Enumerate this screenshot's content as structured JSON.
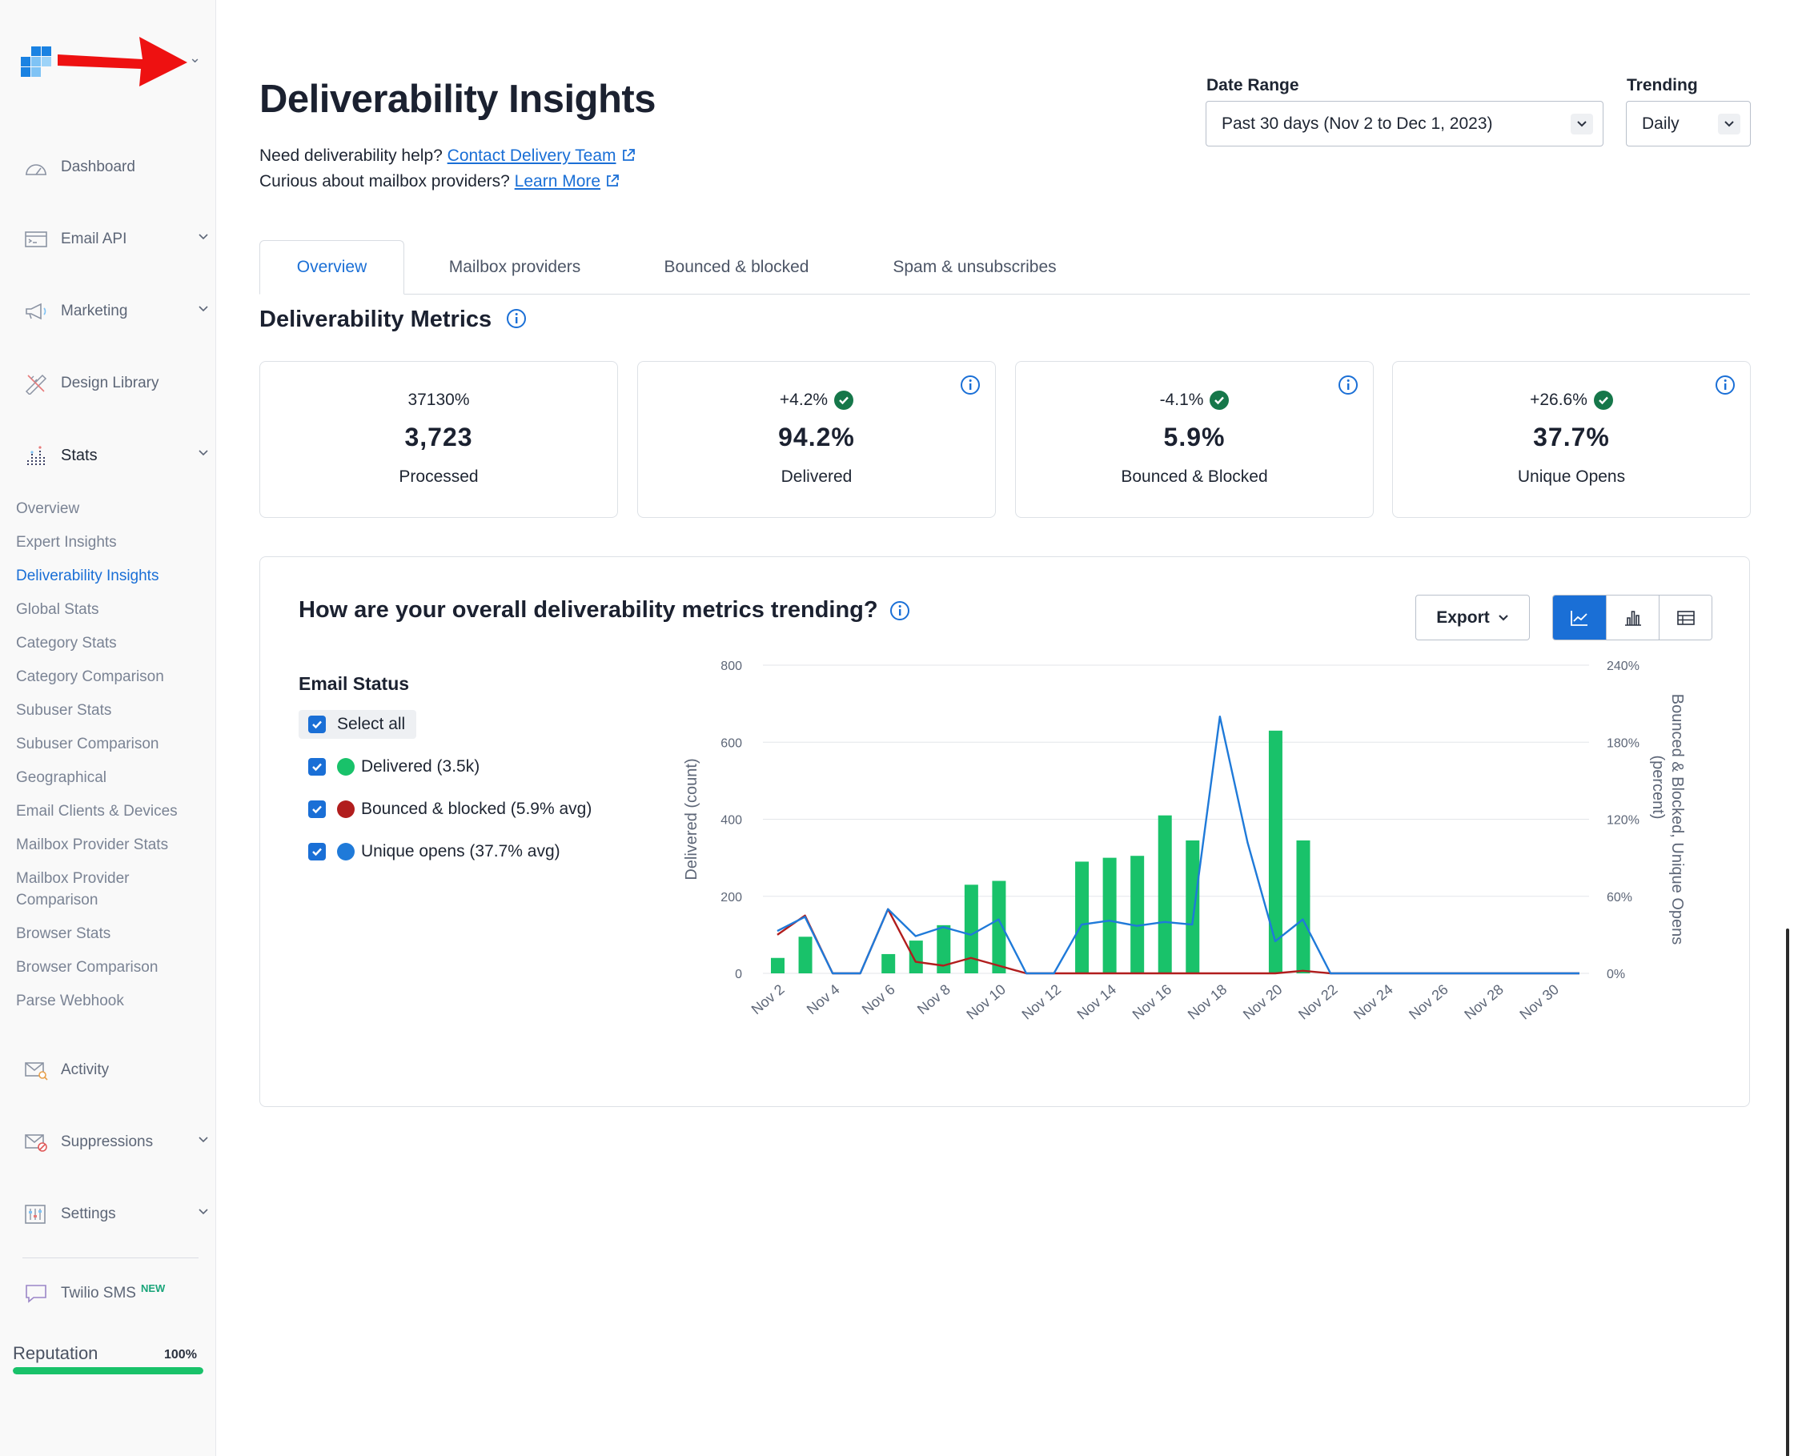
{
  "sidebar": {
    "nav_top": [
      {
        "label": "Dashboard",
        "icon": "gauge-icon"
      },
      {
        "label": "Email API",
        "icon": "terminal-window-icon",
        "expandable": true
      },
      {
        "label": "Marketing",
        "icon": "megaphone-icon",
        "expandable": true
      },
      {
        "label": "Design Library",
        "icon": "pencil-ruler-icon"
      },
      {
        "label": "Stats",
        "icon": "bar-chart-icon",
        "expandable": true
      }
    ],
    "stats_subitems": [
      "Overview",
      "Expert Insights",
      "Deliverability Insights",
      "Global Stats",
      "Category Stats",
      "Category Comparison",
      "Subuser Stats",
      "Subuser Comparison",
      "Geographical",
      "Email Clients & Devices",
      "Mailbox Provider Stats",
      "Mailbox Provider Comparison",
      "Browser Stats",
      "Browser Comparison",
      "Parse Webhook"
    ],
    "current_subitem": "Deliverability Insights",
    "nav_bottom": [
      {
        "label": "Activity",
        "icon": "envelope-search-icon"
      },
      {
        "label": "Suppressions",
        "icon": "envelope-block-icon",
        "expandable": true
      },
      {
        "label": "Settings",
        "icon": "sliders-icon",
        "expandable": true
      }
    ],
    "twilio": {
      "label": "Twilio SMS",
      "badge": "NEW"
    },
    "reputation": {
      "label": "Reputation",
      "value": "100%",
      "percent": 100
    }
  },
  "header": {
    "title": "Deliverability Insights",
    "help1_text": "Need deliverability help?",
    "help1_link": "Contact Delivery Team",
    "help2_text": "Curious about mailbox providers?",
    "help2_link": "Learn More",
    "date_range_label": "Date Range",
    "date_range_value": "Past 30 days (Nov 2 to Dec 1, 2023)",
    "trending_label": "Trending",
    "trending_value": "Daily"
  },
  "tabs": [
    "Overview",
    "Mailbox providers",
    "Bounced & blocked",
    "Spam & unsubscribes"
  ],
  "active_tab": "Overview",
  "metrics_title": "Deliverability Metrics",
  "metrics": [
    {
      "change": "37130%",
      "value": "3,723",
      "label": "Processed",
      "check": false,
      "info": false
    },
    {
      "change": "+4.2%",
      "value": "94.2%",
      "label": "Delivered",
      "check": true,
      "info": true
    },
    {
      "change": "-4.1%",
      "value": "5.9%",
      "label": "Bounced & Blocked",
      "check": true,
      "info": true
    },
    {
      "change": "+26.6%",
      "value": "37.7%",
      "label": "Unique Opens",
      "check": true,
      "info": true
    }
  ],
  "trend": {
    "title": "How are your overall deliverability metrics trending?",
    "export_label": "Export",
    "legend_title": "Email Status",
    "select_all": "Select all",
    "series_labels": [
      "Delivered (3.5k)",
      "Bounced & blocked (5.9% avg)",
      "Unique opens (37.7% avg)"
    ]
  },
  "colors": {
    "delivered": "#19c26a",
    "bounced": "#b11d1d",
    "opens": "#1f7ad9",
    "accent": "#1a6fd6"
  },
  "chart_data": {
    "type": "bar",
    "x": [
      "Nov 2",
      "Nov 3",
      "Nov 4",
      "Nov 5",
      "Nov 6",
      "Nov 7",
      "Nov 8",
      "Nov 9",
      "Nov 10",
      "Nov 11",
      "Nov 12",
      "Nov 13",
      "Nov 14",
      "Nov 15",
      "Nov 16",
      "Nov 17",
      "Nov 18",
      "Nov 19",
      "Nov 20",
      "Nov 21",
      "Nov 22",
      "Nov 23",
      "Nov 24",
      "Nov 25",
      "Nov 26",
      "Nov 27",
      "Nov 28",
      "Nov 29",
      "Nov 30",
      "Dec 1"
    ],
    "x_tick_labels": [
      "Nov 2",
      "Nov 4",
      "Nov 6",
      "Nov 8",
      "Nov 10",
      "Nov 12",
      "Nov 14",
      "Nov 16",
      "Nov 18",
      "Nov 20",
      "Nov 22",
      "Nov 24",
      "Nov 26",
      "Nov 28",
      "Nov 30"
    ],
    "ylabel": "Delivered (count)",
    "y2label": "Bounced & Blocked, Unique Opens (percent)",
    "ylim": [
      0,
      800
    ],
    "y2lim": [
      0,
      240
    ],
    "yticks": [
      "0",
      "200",
      "400",
      "600",
      "800"
    ],
    "y2ticks": [
      "0%",
      "60%",
      "120%",
      "180%",
      "240%"
    ],
    "grid": true,
    "series": [
      {
        "name": "Delivered",
        "axis": "left",
        "kind": "bar",
        "values": [
          40,
          95,
          0,
          0,
          50,
          85,
          125,
          230,
          240,
          0,
          0,
          290,
          300,
          305,
          410,
          345,
          0,
          0,
          630,
          345,
          0,
          0,
          0,
          0,
          0,
          0,
          0,
          0,
          0,
          0
        ]
      },
      {
        "name": "Bounced & blocked",
        "axis": "right",
        "kind": "line",
        "values": [
          30,
          45,
          0,
          0,
          50,
          9,
          6,
          12,
          6,
          0,
          0,
          0,
          0,
          0,
          0,
          0,
          0,
          0,
          0,
          2,
          0,
          0,
          0,
          0,
          0,
          0,
          0,
          0,
          0,
          0
        ]
      },
      {
        "name": "Unique opens",
        "axis": "right",
        "kind": "line",
        "values": [
          33,
          44,
          0,
          0,
          50,
          29,
          36,
          30,
          42,
          0,
          0,
          38,
          41,
          37,
          40,
          38,
          200,
          102,
          25,
          42,
          0,
          0,
          0,
          0,
          0,
          0,
          0,
          0,
          0,
          0
        ]
      }
    ]
  }
}
